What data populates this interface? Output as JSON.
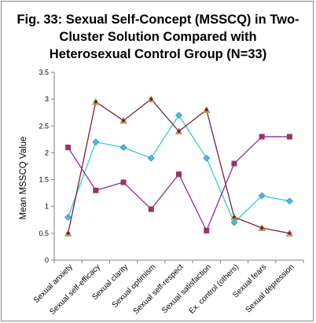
{
  "chart_data": {
    "type": "line",
    "title_lines": [
      "Fig. 33: Sexual Self-Concept (MSSCQ) in Two-",
      "Cluster Solution Compared with",
      "Heterosexual Control Group (N=33)"
    ],
    "ylabel": "Mean MSSCQ Value",
    "ylim": [
      0,
      3.5
    ],
    "yticks": [
      "0",
      "0.5",
      "1",
      "1.5",
      "2",
      "2.5",
      "3",
      "3.5"
    ],
    "categories": [
      "Sexual anxiety",
      "Sexual self-efficacy",
      "Sexual clarity",
      "Sexual optimism",
      "Sexual self-respect",
      "Sexual satisfaction",
      "Ex. control (others)",
      "Sexual fears",
      "Sexual depression"
    ],
    "grid": false,
    "legend": "none",
    "series": [
      {
        "color": "#33cccc",
        "marker": "diamond",
        "marker_color": "#4db8e8",
        "values": [
          0.8,
          2.2,
          2.1,
          1.9,
          2.7,
          1.9,
          0.7,
          1.2,
          1.1
        ]
      },
      {
        "color": "#7f1f3f",
        "marker": "triangle",
        "marker_color": "#c9b84a",
        "values": [
          0.5,
          2.95,
          2.6,
          3.0,
          2.4,
          2.8,
          0.8,
          0.6,
          0.5
        ]
      },
      {
        "color": "#8b2f97",
        "marker": "square",
        "marker_color": "#993366",
        "values": [
          2.1,
          1.3,
          1.45,
          0.95,
          1.6,
          0.55,
          1.8,
          2.3,
          2.3
        ]
      }
    ]
  }
}
